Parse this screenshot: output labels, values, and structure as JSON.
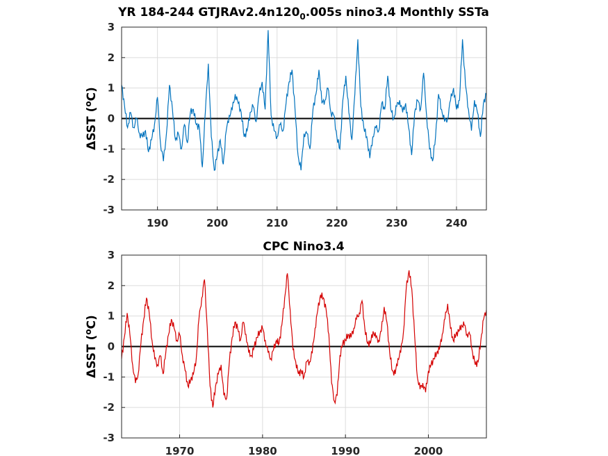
{
  "chart_data": [
    {
      "type": "line",
      "title_main": "YR 184-244 GTJRAv2.4n120",
      "title_sub": "0",
      "title_tail": ".005s nino3.4 Monthly SSTa",
      "ylabel_prefix": "ΔSST (",
      "ylabel_deg": "o",
      "ylabel_suffix": "C)",
      "xlim": [
        184,
        245
      ],
      "ylim": [
        -3,
        3
      ],
      "xticks": [
        190,
        200,
        210,
        220,
        230,
        240
      ],
      "yticks": [
        -3,
        -2,
        -1,
        0,
        1,
        2,
        3
      ],
      "grid": true,
      "color": "#0072BD",
      "series": [
        {
          "x": [
            184.0,
            184.5,
            185.0,
            185.5,
            186.0,
            186.5,
            187.0,
            187.5,
            188.0,
            188.5,
            189.0,
            189.5,
            190.0,
            190.5,
            191.0,
            191.5,
            192.0,
            192.5,
            193.0,
            193.5,
            194.0,
            194.5,
            195.0,
            195.5,
            196.0,
            196.5,
            197.0,
            197.5,
            198.0,
            198.5,
            199.0,
            199.5,
            200.0,
            200.5,
            201.0,
            201.5,
            202.0,
            202.5,
            203.0,
            203.5,
            204.0,
            204.5,
            205.0,
            205.5,
            206.0,
            206.5,
            207.0,
            207.5,
            208.0,
            208.5,
            209.0,
            209.5,
            210.0,
            210.5,
            211.0,
            211.5,
            212.0,
            212.5,
            213.0,
            213.5,
            214.0,
            214.5,
            215.0,
            215.5,
            216.0,
            216.5,
            217.0,
            217.5,
            218.0,
            218.5,
            219.0,
            219.5,
            220.0,
            220.5,
            221.0,
            221.5,
            222.0,
            222.5,
            223.0,
            223.5,
            224.0,
            224.5,
            225.0,
            225.5,
            226.0,
            226.5,
            227.0,
            227.5,
            228.0,
            228.5,
            229.0,
            229.5,
            230.0,
            230.5,
            231.0,
            231.5,
            232.0,
            232.5,
            233.0,
            233.5,
            234.0,
            234.5,
            235.0,
            235.5,
            236.0,
            236.5,
            237.0,
            237.5,
            238.0,
            238.5,
            239.0,
            239.5,
            240.0,
            240.5,
            241.0,
            241.5,
            242.0,
            242.5,
            243.0,
            243.5,
            244.0,
            244.5,
            245.0
          ],
          "values": [
            1.1,
            0.4,
            -0.3,
            0.2,
            -0.3,
            0.0,
            -0.5,
            -0.6,
            -0.4,
            -1.1,
            -0.7,
            -0.2,
            0.7,
            -0.8,
            -1.4,
            -0.5,
            1.1,
            0.3,
            -0.7,
            -0.5,
            -1.0,
            -0.2,
            -0.8,
            0.2,
            0.3,
            -0.2,
            -0.3,
            -1.6,
            0.2,
            1.8,
            -0.6,
            -1.7,
            -1.2,
            -0.7,
            -1.5,
            -0.4,
            0.1,
            0.3,
            0.8,
            0.5,
            0.2,
            -0.6,
            -0.4,
            0.2,
            0.4,
            -0.1,
            0.8,
            1.2,
            0.3,
            2.9,
            0.1,
            -0.4,
            -0.6,
            -0.2,
            -0.4,
            0.5,
            1.2,
            1.6,
            0.3,
            -1.2,
            -1.7,
            -0.5,
            -0.5,
            -1.0,
            0.3,
            0.8,
            1.6,
            0.5,
            0.6,
            1.0,
            0.2,
            0.1,
            -0.6,
            -1.0,
            0.6,
            1.4,
            0.2,
            -0.7,
            0.8,
            2.6,
            0.4,
            -0.3,
            -0.6,
            -1.3,
            -0.6,
            -0.3,
            -0.4,
            0.5,
            0.3,
            1.4,
            0.3,
            0.0,
            0.4,
            0.6,
            0.2,
            0.5,
            -0.3,
            -1.2,
            0.2,
            0.6,
            0.3,
            1.5,
            0.1,
            -1.0,
            -1.4,
            -0.6,
            0.8,
            0.3,
            -0.1,
            0.0,
            0.6,
            1.0,
            0.3,
            0.6,
            2.6,
            1.1,
            0.3,
            -0.4,
            0.6,
            0.2,
            -0.6,
            0.5,
            0.8
          ]
        }
      ]
    },
    {
      "type": "line",
      "title": "CPC Nino3.4",
      "ylabel_prefix": "ΔSST (",
      "ylabel_deg": "o",
      "ylabel_suffix": "C)",
      "xlim": [
        1963,
        2007
      ],
      "ylim": [
        -3,
        3
      ],
      "xticks": [
        1970,
        1980,
        1990,
        2000
      ],
      "yticks": [
        -3,
        -2,
        -1,
        0,
        1,
        2,
        3
      ],
      "grid": true,
      "color": "#D40000",
      "series": [
        {
          "x": [
            1963.0,
            1963.33,
            1963.67,
            1964.0,
            1964.33,
            1964.67,
            1965.0,
            1965.33,
            1965.67,
            1966.0,
            1966.33,
            1966.67,
            1967.0,
            1967.33,
            1967.67,
            1968.0,
            1968.33,
            1968.67,
            1969.0,
            1969.33,
            1969.67,
            1970.0,
            1970.33,
            1970.67,
            1971.0,
            1971.33,
            1971.67,
            1972.0,
            1972.33,
            1972.67,
            1973.0,
            1973.33,
            1973.67,
            1974.0,
            1974.33,
            1974.67,
            1975.0,
            1975.33,
            1975.67,
            1976.0,
            1976.33,
            1976.67,
            1977.0,
            1977.33,
            1977.67,
            1978.0,
            1978.33,
            1978.67,
            1979.0,
            1979.33,
            1979.67,
            1980.0,
            1980.33,
            1980.67,
            1981.0,
            1981.33,
            1981.67,
            1982.0,
            1982.33,
            1982.67,
            1983.0,
            1983.33,
            1983.67,
            1984.0,
            1984.33,
            1984.67,
            1985.0,
            1985.33,
            1985.67,
            1986.0,
            1986.33,
            1986.67,
            1987.0,
            1987.33,
            1987.67,
            1988.0,
            1988.33,
            1988.67,
            1989.0,
            1989.33,
            1989.67,
            1990.0,
            1990.33,
            1990.67,
            1991.0,
            1991.33,
            1991.67,
            1992.0,
            1992.33,
            1992.67,
            1993.0,
            1993.33,
            1993.67,
            1994.0,
            1994.33,
            1994.67,
            1995.0,
            1995.33,
            1995.67,
            1996.0,
            1996.33,
            1996.67,
            1997.0,
            1997.33,
            1997.67,
            1998.0,
            1998.33,
            1998.67,
            1999.0,
            1999.33,
            1999.67,
            2000.0,
            2000.33,
            2000.67,
            2001.0,
            2001.33,
            2001.67,
            2002.0,
            2002.33,
            2002.67,
            2003.0,
            2003.33,
            2003.67,
            2004.0,
            2004.33,
            2004.67,
            2005.0,
            2005.33,
            2005.67,
            2006.0,
            2006.33,
            2006.67,
            2007.0
          ],
          "values": [
            -0.4,
            0.3,
            1.1,
            0.4,
            -0.6,
            -1.2,
            -0.9,
            0.1,
            0.9,
            1.6,
            1.1,
            0.2,
            -0.4,
            -0.6,
            -0.3,
            -0.9,
            -0.2,
            0.4,
            0.9,
            0.6,
            0.2,
            0.4,
            -0.3,
            -0.8,
            -1.3,
            -1.1,
            -0.9,
            -0.4,
            0.9,
            1.6,
            2.2,
            0.6,
            -1.3,
            -2.0,
            -1.3,
            -0.9,
            -0.6,
            -1.6,
            -1.7,
            -0.5,
            0.3,
            0.8,
            0.6,
            0.2,
            0.8,
            0.4,
            -0.2,
            -0.3,
            0.0,
            0.3,
            0.5,
            0.6,
            0.2,
            -0.2,
            -0.4,
            -0.1,
            0.2,
            0.1,
            0.7,
            1.6,
            2.4,
            1.2,
            -0.1,
            -0.5,
            -0.9,
            -0.8,
            -1.0,
            -0.5,
            -0.5,
            -0.2,
            0.6,
            1.2,
            1.7,
            1.6,
            1.2,
            0.4,
            -1.2,
            -1.8,
            -1.6,
            -0.3,
            0.1,
            0.2,
            0.4,
            0.3,
            0.6,
            0.9,
            1.1,
            1.5,
            0.6,
            0.1,
            0.1,
            0.5,
            0.3,
            0.2,
            0.5,
            1.3,
            0.8,
            -0.2,
            -0.8,
            -0.9,
            -0.4,
            -0.2,
            0.5,
            1.9,
            2.5,
            1.9,
            0.4,
            -1.0,
            -1.4,
            -1.2,
            -1.5,
            -0.8,
            -0.6,
            -0.4,
            -0.2,
            -0.1,
            0.4,
            0.9,
            1.4,
            0.6,
            0.2,
            0.4,
            0.5,
            0.7,
            0.7,
            0.4,
            0.4,
            -0.2,
            -0.6,
            -0.5,
            0.2,
            0.9,
            1.2
          ]
        }
      ]
    }
  ]
}
